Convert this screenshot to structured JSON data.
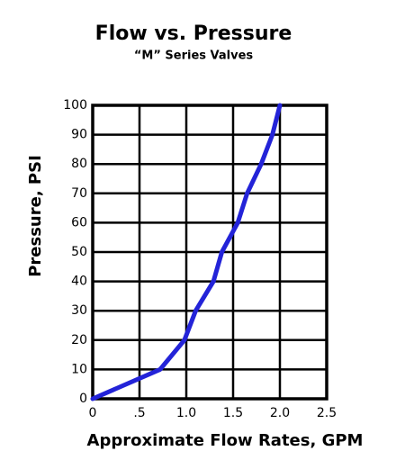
{
  "chart_data": {
    "type": "line",
    "title": "Flow vs. Pressure",
    "subtitle": "“M” Series Valves",
    "x_label": "Approximate Flow Rates, GPM",
    "y_label": "Pressure, PSI",
    "x": [
      0,
      0.72,
      0.98,
      1.1,
      1.29,
      1.38,
      1.55,
      1.65,
      1.8,
      1.92,
      2.0
    ],
    "series": [
      {
        "color": "#2323d8",
        "values": [
          0,
          10,
          20,
          30,
          40,
          50,
          60,
          70,
          80,
          90,
          100
        ]
      }
    ],
    "xlim": [
      0,
      2.5
    ],
    "xticks": [
      0,
      {
        "value": 0.5,
        "label": ".5"
      },
      {
        "value": 1,
        "label": "1.0"
      },
      1.5,
      {
        "value": 2,
        "label": "2.0"
      },
      2.5
    ],
    "ylim": [
      0,
      100
    ],
    "yticks": [
      0,
      10,
      20,
      30,
      40,
      50,
      60,
      70,
      80,
      90,
      100
    ],
    "grid": true
  }
}
